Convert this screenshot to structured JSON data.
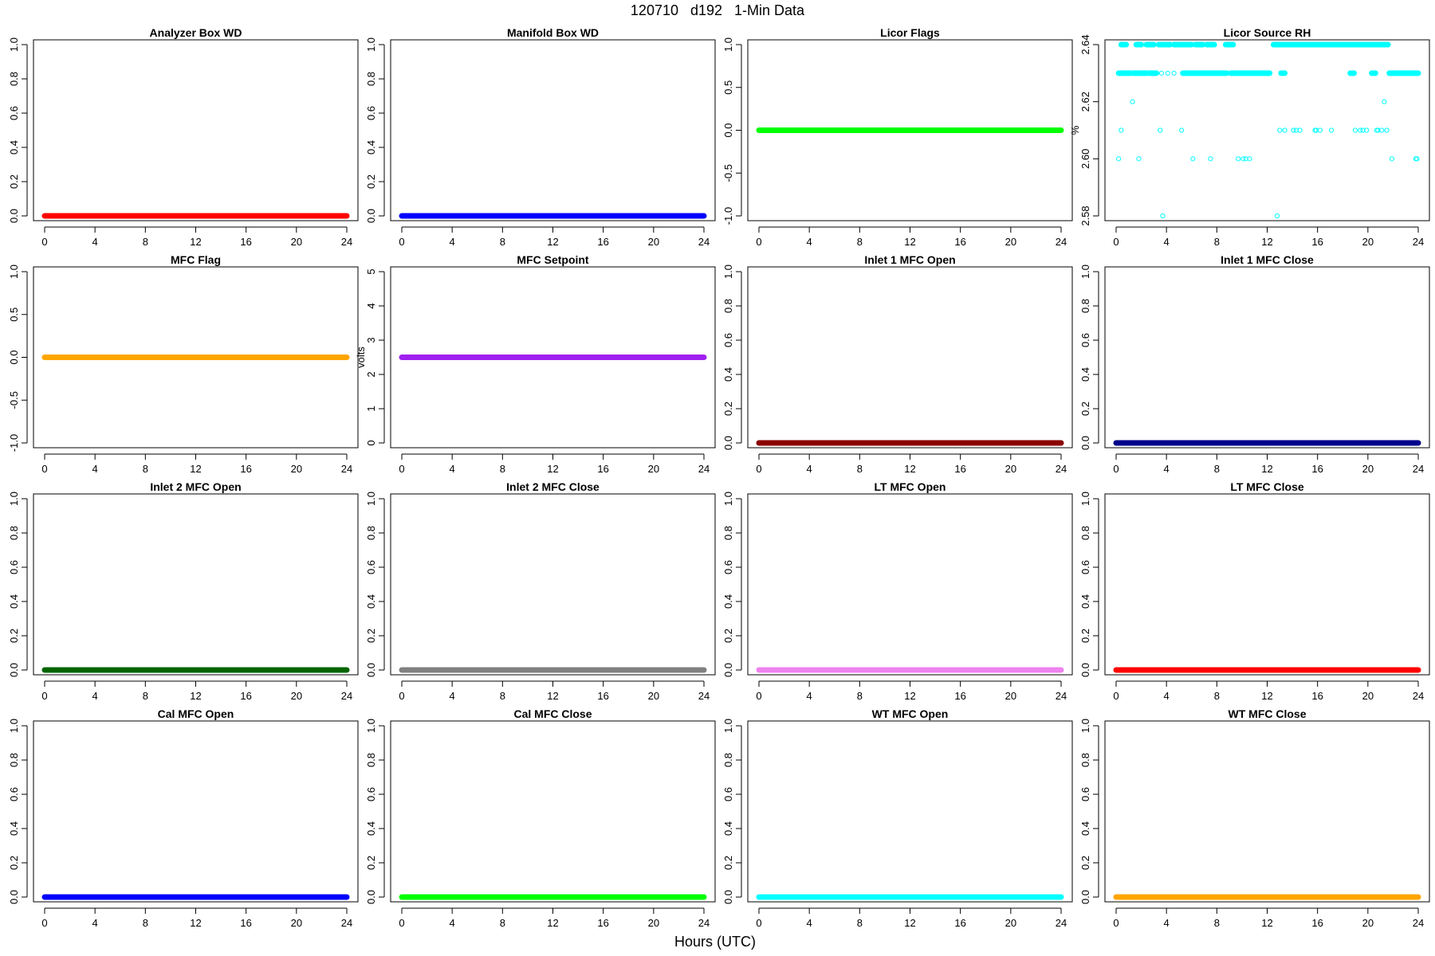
{
  "figure": {
    "title": "120710   d192   1-Min Data",
    "xlabel": "Hours (UTC)"
  },
  "chart_data": [
    {
      "type": "scatter",
      "title": "Analyzer Box WD",
      "ylabel": "",
      "xlim": [
        0,
        24
      ],
      "ylim": [
        0,
        1
      ],
      "xticks": [
        0,
        4,
        8,
        12,
        16,
        20,
        24
      ],
      "yticks": [
        0.0,
        0.2,
        0.4,
        0.6,
        0.8,
        1.0
      ],
      "color": "#ff0000",
      "series": [
        {
          "x": [
            0,
            24
          ],
          "y": [
            0,
            0
          ]
        }
      ]
    },
    {
      "type": "scatter",
      "title": "Manifold Box WD",
      "ylabel": "",
      "xlim": [
        0,
        24
      ],
      "ylim": [
        0,
        1
      ],
      "xticks": [
        0,
        4,
        8,
        12,
        16,
        20,
        24
      ],
      "yticks": [
        0.0,
        0.2,
        0.4,
        0.6,
        0.8,
        1.0
      ],
      "color": "#0000ff",
      "series": [
        {
          "x": [
            0,
            24
          ],
          "y": [
            0,
            0
          ]
        }
      ]
    },
    {
      "type": "scatter",
      "title": "Licor Flags",
      "ylabel": "",
      "xlim": [
        0,
        24
      ],
      "ylim": [
        -1,
        1
      ],
      "xticks": [
        0,
        4,
        8,
        12,
        16,
        20,
        24
      ],
      "yticks": [
        -1.0,
        -0.5,
        0.0,
        0.5,
        1.0
      ],
      "color": "#00ff00",
      "series": [
        {
          "x": [
            0,
            24
          ],
          "y": [
            0,
            0
          ]
        }
      ]
    },
    {
      "type": "scatter",
      "title": "Licor Source RH",
      "ylabel": "%",
      "xlim": [
        0,
        24
      ],
      "ylim": [
        2.58,
        2.64
      ],
      "xticks": [
        0,
        4,
        8,
        12,
        16,
        20,
        24
      ],
      "yticks": [
        2.58,
        2.6,
        2.62,
        2.64
      ],
      "color": "#00ffff",
      "open_points": true,
      "series": [
        {
          "x": [
            0.2,
            0.4,
            0.7,
            1.3,
            1.6,
            1.8,
            2.3,
            3.0,
            3.5,
            3.6,
            3.7,
            4.1,
            4.6,
            5.2,
            5.6,
            5.9,
            6.1,
            6.3,
            6.7,
            7.5,
            7.6,
            8.6,
            9.2,
            9.7,
            9.9,
            10.1,
            10.3,
            10.6,
            12.8,
            13.0,
            13.4,
            14.1,
            14.3,
            14.6,
            15.8,
            15.9,
            16.2,
            17.1,
            19.0,
            19.4,
            19.6,
            19.9,
            20.7,
            20.8,
            21.1,
            21.3,
            21.5,
            21.9,
            23.8,
            23.9
          ],
          "y": [
            2.6,
            2.61,
            2.63,
            2.62,
            2.63,
            2.6,
            2.63,
            2.63,
            2.61,
            2.63,
            2.58,
            2.63,
            2.63,
            2.61,
            2.63,
            2.63,
            2.6,
            2.63,
            2.63,
            2.6,
            2.63,
            2.63,
            2.63,
            2.6,
            2.63,
            2.6,
            2.6,
            2.6,
            2.58,
            2.61,
            2.61,
            2.61,
            2.61,
            2.61,
            2.61,
            2.61,
            2.61,
            2.61,
            2.61,
            2.61,
            2.61,
            2.61,
            2.61,
            2.61,
            2.61,
            2.62,
            2.61,
            2.6,
            2.6,
            2.6
          ]
        }
      ],
      "runs": [
        {
          "y": 2.64,
          "from": 0.4,
          "to": 0.8
        },
        {
          "y": 2.64,
          "from": 1.6,
          "to": 2.0
        },
        {
          "y": 2.64,
          "from": 2.4,
          "to": 3.0
        },
        {
          "y": 2.64,
          "from": 3.4,
          "to": 4.3
        },
        {
          "y": 2.64,
          "from": 4.6,
          "to": 6.0
        },
        {
          "y": 2.64,
          "from": 6.3,
          "to": 6.9
        },
        {
          "y": 2.64,
          "from": 7.2,
          "to": 7.8
        },
        {
          "y": 2.64,
          "from": 8.7,
          "to": 9.3
        },
        {
          "y": 2.64,
          "from": 12.5,
          "to": 21.6
        },
        {
          "y": 2.63,
          "from": 0.2,
          "to": 1.2
        },
        {
          "y": 2.63,
          "from": 1.4,
          "to": 2.4
        },
        {
          "y": 2.63,
          "from": 2.6,
          "to": 3.2
        },
        {
          "y": 2.63,
          "from": 5.3,
          "to": 8.8
        },
        {
          "y": 2.63,
          "from": 9.1,
          "to": 12.2
        },
        {
          "y": 2.63,
          "from": 13.1,
          "to": 13.4
        },
        {
          "y": 2.63,
          "from": 18.6,
          "to": 18.9
        },
        {
          "y": 2.63,
          "from": 20.3,
          "to": 20.6
        },
        {
          "y": 2.63,
          "from": 21.7,
          "to": 24.0
        }
      ]
    },
    {
      "type": "scatter",
      "title": "MFC Flag",
      "ylabel": "",
      "xlim": [
        0,
        24
      ],
      "ylim": [
        -1,
        1
      ],
      "xticks": [
        0,
        4,
        8,
        12,
        16,
        20,
        24
      ],
      "yticks": [
        -1.0,
        -0.5,
        0.0,
        0.5,
        1.0
      ],
      "color": "#ffa500",
      "series": [
        {
          "x": [
            0,
            24
          ],
          "y": [
            0,
            0
          ]
        }
      ]
    },
    {
      "type": "scatter",
      "title": "MFC Setpoint",
      "ylabel": "volts",
      "xlim": [
        0,
        24
      ],
      "ylim": [
        0,
        5
      ],
      "xticks": [
        0,
        4,
        8,
        12,
        16,
        20,
        24
      ],
      "yticks": [
        0,
        1,
        2,
        3,
        4,
        5
      ],
      "color": "#a020f0",
      "series": [
        {
          "x": [
            0,
            24
          ],
          "y": [
            2.5,
            2.5
          ]
        }
      ]
    },
    {
      "type": "scatter",
      "title": "Inlet 1 MFC Open",
      "ylabel": "",
      "xlim": [
        0,
        24
      ],
      "ylim": [
        0,
        1
      ],
      "xticks": [
        0,
        4,
        8,
        12,
        16,
        20,
        24
      ],
      "yticks": [
        0.0,
        0.2,
        0.4,
        0.6,
        0.8,
        1.0
      ],
      "color": "#8b0000",
      "series": [
        {
          "x": [
            0,
            24
          ],
          "y": [
            0,
            0
          ]
        }
      ]
    },
    {
      "type": "scatter",
      "title": "Inlet 1 MFC Close",
      "ylabel": "",
      "xlim": [
        0,
        24
      ],
      "ylim": [
        0,
        1
      ],
      "xticks": [
        0,
        4,
        8,
        12,
        16,
        20,
        24
      ],
      "yticks": [
        0.0,
        0.2,
        0.4,
        0.6,
        0.8,
        1.0
      ],
      "color": "#00008b",
      "series": [
        {
          "x": [
            0,
            24
          ],
          "y": [
            0,
            0
          ]
        }
      ]
    },
    {
      "type": "scatter",
      "title": "Inlet 2 MFC Open",
      "ylabel": "",
      "xlim": [
        0,
        24
      ],
      "ylim": [
        0,
        1
      ],
      "xticks": [
        0,
        4,
        8,
        12,
        16,
        20,
        24
      ],
      "yticks": [
        0.0,
        0.2,
        0.4,
        0.6,
        0.8,
        1.0
      ],
      "color": "#006400",
      "series": [
        {
          "x": [
            0,
            24
          ],
          "y": [
            0,
            0
          ]
        }
      ]
    },
    {
      "type": "scatter",
      "title": "Inlet 2 MFC Close",
      "ylabel": "",
      "xlim": [
        0,
        24
      ],
      "ylim": [
        0,
        1
      ],
      "xticks": [
        0,
        4,
        8,
        12,
        16,
        20,
        24
      ],
      "yticks": [
        0.0,
        0.2,
        0.4,
        0.6,
        0.8,
        1.0
      ],
      "color": "#808080",
      "series": [
        {
          "x": [
            0,
            24
          ],
          "y": [
            0,
            0
          ]
        }
      ]
    },
    {
      "type": "scatter",
      "title": "LT MFC Open",
      "ylabel": "",
      "xlim": [
        0,
        24
      ],
      "ylim": [
        0,
        1
      ],
      "xticks": [
        0,
        4,
        8,
        12,
        16,
        20,
        24
      ],
      "yticks": [
        0.0,
        0.2,
        0.4,
        0.6,
        0.8,
        1.0
      ],
      "color": "#ee82ee",
      "series": [
        {
          "x": [
            0,
            24
          ],
          "y": [
            0,
            0
          ]
        }
      ]
    },
    {
      "type": "scatter",
      "title": "LT MFC Close",
      "ylabel": "",
      "xlim": [
        0,
        24
      ],
      "ylim": [
        0,
        1
      ],
      "xticks": [
        0,
        4,
        8,
        12,
        16,
        20,
        24
      ],
      "yticks": [
        0.0,
        0.2,
        0.4,
        0.6,
        0.8,
        1.0
      ],
      "color": "#ff0000",
      "series": [
        {
          "x": [
            0,
            24
          ],
          "y": [
            0,
            0
          ]
        }
      ]
    },
    {
      "type": "scatter",
      "title": "Cal MFC Open",
      "ylabel": "",
      "xlim": [
        0,
        24
      ],
      "ylim": [
        0,
        1
      ],
      "xticks": [
        0,
        4,
        8,
        12,
        16,
        20,
        24
      ],
      "yticks": [
        0.0,
        0.2,
        0.4,
        0.6,
        0.8,
        1.0
      ],
      "color": "#0000ff",
      "series": [
        {
          "x": [
            0,
            24
          ],
          "y": [
            0,
            0
          ]
        }
      ]
    },
    {
      "type": "scatter",
      "title": "Cal MFC Close",
      "ylabel": "",
      "xlim": [
        0,
        24
      ],
      "ylim": [
        0,
        1
      ],
      "xticks": [
        0,
        4,
        8,
        12,
        16,
        20,
        24
      ],
      "yticks": [
        0.0,
        0.2,
        0.4,
        0.6,
        0.8,
        1.0
      ],
      "color": "#00ff00",
      "series": [
        {
          "x": [
            0,
            24
          ],
          "y": [
            0,
            0
          ]
        }
      ]
    },
    {
      "type": "scatter",
      "title": "WT MFC Open",
      "ylabel": "",
      "xlim": [
        0,
        24
      ],
      "ylim": [
        0,
        1
      ],
      "xticks": [
        0,
        4,
        8,
        12,
        16,
        20,
        24
      ],
      "yticks": [
        0.0,
        0.2,
        0.4,
        0.6,
        0.8,
        1.0
      ],
      "color": "#00ffff",
      "series": [
        {
          "x": [
            0,
            24
          ],
          "y": [
            0,
            0
          ]
        }
      ]
    },
    {
      "type": "scatter",
      "title": "WT MFC Close",
      "ylabel": "",
      "xlim": [
        0,
        24
      ],
      "ylim": [
        0,
        1
      ],
      "xticks": [
        0,
        4,
        8,
        12,
        16,
        20,
        24
      ],
      "yticks": [
        0.0,
        0.2,
        0.4,
        0.6,
        0.8,
        1.0
      ],
      "color": "#ffa500",
      "series": [
        {
          "x": [
            0,
            24
          ],
          "y": [
            0,
            0
          ]
        }
      ]
    }
  ]
}
